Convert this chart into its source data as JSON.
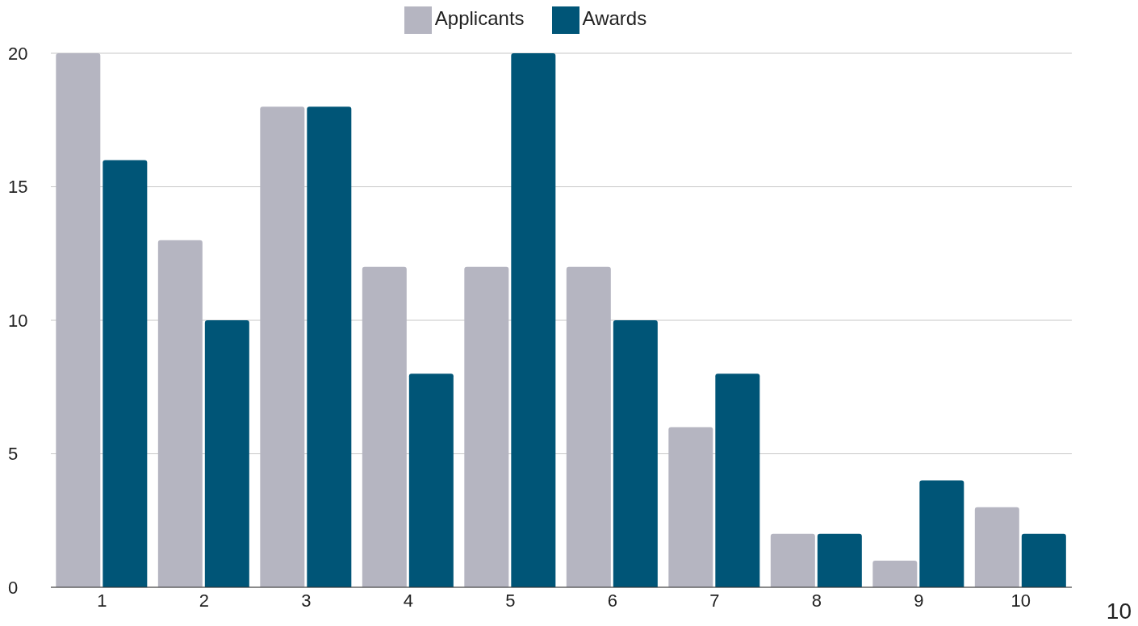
{
  "chart_data": {
    "type": "bar",
    "categories": [
      "1",
      "2",
      "3",
      "4",
      "5",
      "6",
      "7",
      "8",
      "9",
      "10"
    ],
    "series": [
      {
        "name": "Applicants",
        "color": "#b5b5c1",
        "values": [
          20,
          13,
          18,
          12,
          12,
          12,
          6,
          2,
          1,
          3
        ]
      },
      {
        "name": "Awards",
        "color": "#005577",
        "values": [
          16,
          10,
          18,
          8,
          20,
          10,
          8,
          2,
          4,
          2
        ]
      }
    ],
    "ylim": [
      0,
      20
    ],
    "yticks": [
      0,
      5,
      10,
      15,
      20
    ],
    "grid": "y",
    "legend": "top",
    "annotations": [
      "10"
    ]
  }
}
